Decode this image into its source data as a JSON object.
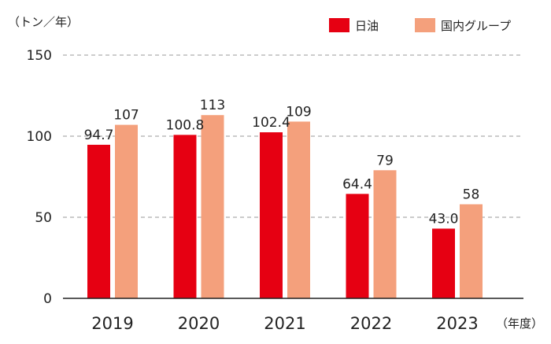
{
  "chart_data": {
    "type": "bar",
    "title": "",
    "ylabel": "（トン／年）",
    "xlabel": "（年度）",
    "categories": [
      "2019",
      "2020",
      "2021",
      "2022",
      "2023"
    ],
    "series": [
      {
        "name": "日油",
        "color": "#e60012",
        "values": [
          94.7,
          100.8,
          102.4,
          64.4,
          43.0
        ],
        "labels": [
          "94.7",
          "100.8",
          "102.4",
          "64.4",
          "43.0"
        ]
      },
      {
        "name": "国内グループ",
        "color": "#f4a07c",
        "values": [
          107,
          113,
          109,
          79,
          58
        ],
        "labels": [
          "107",
          "113",
          "109",
          "79",
          "58"
        ]
      }
    ],
    "ylim": [
      0,
      150
    ],
    "yticks": [
      0,
      50,
      100,
      150
    ],
    "grid": true,
    "legend": "top-right"
  }
}
